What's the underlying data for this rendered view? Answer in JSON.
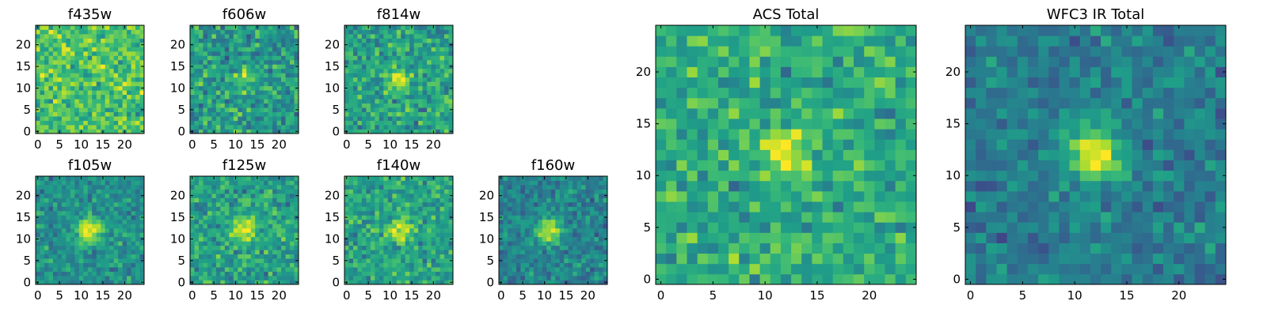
{
  "chart_data": {
    "type": "heatmap",
    "colormap": "viridis",
    "grid_size": 25,
    "panels": [
      {
        "id": "f435w",
        "title": "f435w",
        "xlim": [
          0,
          24
        ],
        "ylim": [
          0,
          24
        ],
        "xticks": [
          0,
          5,
          10,
          15,
          20
        ],
        "yticks": [
          0,
          5,
          10,
          15,
          20
        ],
        "mean_level": 0.72,
        "noise": 0.22,
        "peak": {
          "x": 12,
          "y": 12,
          "amplitude": 0.0,
          "sigma": 2.0
        },
        "seed": 11
      },
      {
        "id": "f606w",
        "title": "f606w",
        "xlim": [
          0,
          24
        ],
        "ylim": [
          0,
          24
        ],
        "xticks": [
          0,
          5,
          10,
          15,
          20
        ],
        "yticks": [
          0,
          5,
          10,
          15,
          20
        ],
        "mean_level": 0.55,
        "noise": 0.24,
        "peak": {
          "x": 12,
          "y": 12,
          "amplitude": 0.3,
          "sigma": 1.3
        },
        "seed": 23
      },
      {
        "id": "f814w",
        "title": "f814w",
        "xlim": [
          0,
          24
        ],
        "ylim": [
          0,
          24
        ],
        "xticks": [
          0,
          5,
          10,
          15,
          20
        ],
        "yticks": [
          0,
          5,
          10,
          15,
          20
        ],
        "mean_level": 0.58,
        "noise": 0.22,
        "peak": {
          "x": 12,
          "y": 12,
          "amplitude": 0.45,
          "sigma": 1.5
        },
        "seed": 37
      },
      {
        "id": "f105w",
        "title": "f105w",
        "xlim": [
          0,
          24
        ],
        "ylim": [
          0,
          24
        ],
        "xticks": [
          0,
          5,
          10,
          15,
          20
        ],
        "yticks": [
          0,
          5,
          10,
          15,
          20
        ],
        "mean_level": 0.5,
        "noise": 0.18,
        "peak": {
          "x": 12,
          "y": 12,
          "amplitude": 0.55,
          "sigma": 2.0
        },
        "seed": 41
      },
      {
        "id": "f125w",
        "title": "f125w",
        "xlim": [
          0,
          24
        ],
        "ylim": [
          0,
          24
        ],
        "xticks": [
          0,
          5,
          10,
          15,
          20
        ],
        "yticks": [
          0,
          5,
          10,
          15,
          20
        ],
        "mean_level": 0.57,
        "noise": 0.2,
        "peak": {
          "x": 12,
          "y": 12,
          "amplitude": 0.4,
          "sigma": 2.0
        },
        "seed": 53
      },
      {
        "id": "f140w",
        "title": "f140w",
        "xlim": [
          0,
          24
        ],
        "ylim": [
          0,
          24
        ],
        "xticks": [
          0,
          5,
          10,
          15,
          20
        ],
        "yticks": [
          0,
          5,
          10,
          15,
          20
        ],
        "mean_level": 0.58,
        "noise": 0.2,
        "peak": {
          "x": 12,
          "y": 12,
          "amplitude": 0.35,
          "sigma": 2.0
        },
        "seed": 67
      },
      {
        "id": "f160w",
        "title": "f160w",
        "xlim": [
          0,
          24
        ],
        "ylim": [
          0,
          24
        ],
        "xticks": [
          0,
          5,
          10,
          15,
          20
        ],
        "yticks": [
          0,
          5,
          10,
          15,
          20
        ],
        "mean_level": 0.45,
        "noise": 0.17,
        "peak": {
          "x": 11,
          "y": 12,
          "amplitude": 0.5,
          "sigma": 2.0
        },
        "seed": 79
      },
      {
        "id": "acs-total",
        "title": "ACS Total",
        "xlim": [
          0,
          24
        ],
        "ylim": [
          0,
          24
        ],
        "xticks": [
          0,
          5,
          10,
          15,
          20
        ],
        "yticks": [
          0,
          5,
          10,
          15,
          20
        ],
        "mean_level": 0.62,
        "noise": 0.2,
        "peak": {
          "x": 12,
          "y": 12,
          "amplitude": 0.45,
          "sigma": 1.4
        },
        "seed": 97
      },
      {
        "id": "wfc3-ir-total",
        "title": "WFC3 IR Total",
        "xlim": [
          0,
          24
        ],
        "ylim": [
          0,
          24
        ],
        "xticks": [
          0,
          5,
          10,
          15,
          20
        ],
        "yticks": [
          0,
          5,
          10,
          15,
          20
        ],
        "mean_level": 0.42,
        "noise": 0.16,
        "peak": {
          "x": 12,
          "y": 12,
          "amplitude": 0.6,
          "sigma": 1.8
        },
        "seed": 113
      }
    ]
  }
}
